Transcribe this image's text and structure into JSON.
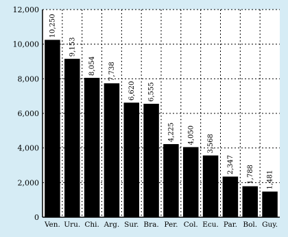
{
  "chart_data": {
    "type": "bar",
    "categories": [
      "Ven.",
      "Uru.",
      "Chi.",
      "Arg.",
      "Sur.",
      "Bra.",
      "Per.",
      "Col.",
      "Ecu.",
      "Par.",
      "Bol.",
      "Guy."
    ],
    "values": [
      10250,
      9153,
      8054,
      7738,
      6620,
      6555,
      4225,
      4050,
      3568,
      2347,
      1788,
      1481
    ],
    "value_labels": [
      "10,250",
      "9,153",
      "8,054",
      "7,738",
      "6,620",
      "6,555",
      "4,225",
      "4,050",
      "3,568",
      "2,347",
      "1,788",
      "1,481"
    ],
    "yticks": [
      0,
      2000,
      4000,
      6000,
      8000,
      10000,
      12000
    ],
    "ytick_labels": [
      "0",
      "2,000",
      "4,000",
      "6,000",
      "8,000",
      "10,000",
      "12,000"
    ],
    "ylim": [
      0,
      12000
    ],
    "title": "",
    "xlabel": "",
    "ylabel": "",
    "grid": true,
    "colors": {
      "background": "#d6ecf5",
      "plot_background": "#ffffff",
      "bar": "#000000"
    }
  }
}
